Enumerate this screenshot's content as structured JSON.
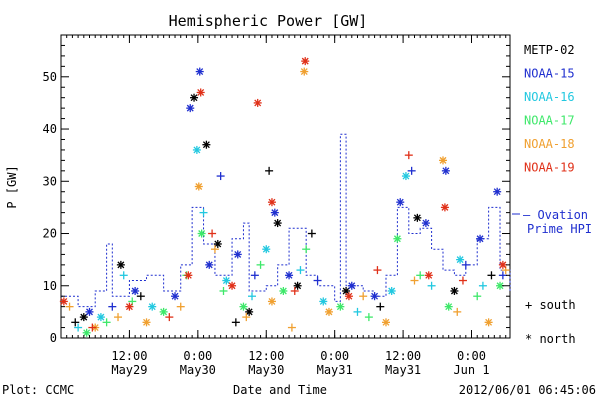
{
  "chart_data": {
    "type": "scatter",
    "title": "Hemispheric Power [GW]",
    "xlabel": "Date and Time",
    "ylabel": "P [GW]",
    "ylim": [
      0,
      58
    ],
    "xlim": [
      "2012-05-29T00:00",
      "2012-06-01T06:45"
    ],
    "y_ticks": [
      0,
      10,
      20,
      30,
      40,
      50
    ],
    "x_ticks": [
      {
        "t": "2012-05-29T12:00",
        "time": "12:00",
        "date": "May29"
      },
      {
        "t": "2012-05-30T00:00",
        "time": "0:00",
        "date": "May30"
      },
      {
        "t": "2012-05-30T12:00",
        "time": "12:00",
        "date": "May30"
      },
      {
        "t": "2012-05-31T00:00",
        "time": "0:00",
        "date": "May31"
      },
      {
        "t": "2012-05-31T12:00",
        "time": "12:00",
        "date": "May31"
      },
      {
        "t": "2012-06-01T00:00",
        "time": "0:00",
        "date": "Jun 1"
      }
    ],
    "grid": false,
    "legend_position": "right",
    "legend": {
      "satellites": [
        {
          "name": "METP-02",
          "color": "#000000"
        },
        {
          "name": "NOAA-15",
          "color": "#1f2fcf"
        },
        {
          "name": "NOAA-16",
          "color": "#22c8e0"
        },
        {
          "name": "NOAA-17",
          "color": "#3ee86a"
        },
        {
          "name": "NOAA-18",
          "color": "#f0a030"
        },
        {
          "name": "NOAA-19",
          "color": "#e03018"
        }
      ],
      "ovation_line1": "— Ovation",
      "ovation_line2": "Prime HPI",
      "south_label": "+ south",
      "north_label": "* north"
    },
    "ovation_prime_hpi": [
      {
        "t": "2012-05-29T00:00",
        "v": 8
      },
      {
        "t": "2012-05-29T03:00",
        "v": 6
      },
      {
        "t": "2012-05-29T06:00",
        "v": 9
      },
      {
        "t": "2012-05-29T08:00",
        "v": 18
      },
      {
        "t": "2012-05-29T09:00",
        "v": 8
      },
      {
        "t": "2012-05-29T12:00",
        "v": 11
      },
      {
        "t": "2012-05-29T15:00",
        "v": 12
      },
      {
        "t": "2012-05-29T18:00",
        "v": 9
      },
      {
        "t": "2012-05-29T21:00",
        "v": 14
      },
      {
        "t": "2012-05-29T23:00",
        "v": 25
      },
      {
        "t": "2012-05-30T01:00",
        "v": 18
      },
      {
        "t": "2012-05-30T03:00",
        "v": 12
      },
      {
        "t": "2012-05-30T06:00",
        "v": 19
      },
      {
        "t": "2012-05-30T08:00",
        "v": 22
      },
      {
        "t": "2012-05-30T09:00",
        "v": 9
      },
      {
        "t": "2012-05-30T12:00",
        "v": 10
      },
      {
        "t": "2012-05-30T14:00",
        "v": 14
      },
      {
        "t": "2012-05-30T16:00",
        "v": 21
      },
      {
        "t": "2012-05-30T19:00",
        "v": 12
      },
      {
        "t": "2012-05-30T21:00",
        "v": 10
      },
      {
        "t": "2012-05-31T00:00",
        "v": 7
      },
      {
        "t": "2012-05-31T01:00",
        "v": 39
      },
      {
        "t": "2012-05-31T02:00",
        "v": 10
      },
      {
        "t": "2012-05-31T05:00",
        "v": 9
      },
      {
        "t": "2012-05-31T07:00",
        "v": 8
      },
      {
        "t": "2012-05-31T09:00",
        "v": 12
      },
      {
        "t": "2012-05-31T11:00",
        "v": 25
      },
      {
        "t": "2012-05-31T13:00",
        "v": 20
      },
      {
        "t": "2012-05-31T15:00",
        "v": 21
      },
      {
        "t": "2012-05-31T17:00",
        "v": 17
      },
      {
        "t": "2012-05-31T19:00",
        "v": 13
      },
      {
        "t": "2012-05-31T21:00",
        "v": 12
      },
      {
        "t": "2012-05-31T23:00",
        "v": 14
      },
      {
        "t": "2012-06-01T01:00",
        "v": 19
      },
      {
        "t": "2012-06-01T03:00",
        "v": 25
      },
      {
        "t": "2012-06-01T05:00",
        "v": 13
      },
      {
        "t": "2012-06-01T06:45",
        "v": 9
      }
    ],
    "series": [
      {
        "name": "METP-02",
        "points": [
          {
            "t": "2012-05-29T02:30",
            "v": 3,
            "h": "s"
          },
          {
            "t": "2012-05-29T04:00",
            "v": 4,
            "h": "n"
          },
          {
            "t": "2012-05-29T10:30",
            "v": 14,
            "h": "n"
          },
          {
            "t": "2012-05-29T14:00",
            "v": 8,
            "h": "s"
          },
          {
            "t": "2012-05-29T23:20",
            "v": 46,
            "h": "n"
          },
          {
            "t": "2012-05-30T01:30",
            "v": 37,
            "h": "n"
          },
          {
            "t": "2012-05-30T03:30",
            "v": 18,
            "h": "n"
          },
          {
            "t": "2012-05-30T06:40",
            "v": 3,
            "h": "s"
          },
          {
            "t": "2012-05-30T09:00",
            "v": 5,
            "h": "n"
          },
          {
            "t": "2012-05-30T12:30",
            "v": 32,
            "h": "s"
          },
          {
            "t": "2012-05-30T14:00",
            "v": 22,
            "h": "n"
          },
          {
            "t": "2012-05-30T17:30",
            "v": 10,
            "h": "n"
          },
          {
            "t": "2012-05-30T20:00",
            "v": 20,
            "h": "s"
          },
          {
            "t": "2012-05-31T02:00",
            "v": 9,
            "h": "n"
          },
          {
            "t": "2012-05-31T08:00",
            "v": 6,
            "h": "s"
          },
          {
            "t": "2012-05-31T14:30",
            "v": 23,
            "h": "n"
          },
          {
            "t": "2012-05-31T21:00",
            "v": 9,
            "h": "n"
          },
          {
            "t": "2012-06-01T03:30",
            "v": 12,
            "h": "s"
          }
        ]
      },
      {
        "name": "NOAA-15",
        "points": [
          {
            "t": "2012-05-29T05:00",
            "v": 5,
            "h": "n"
          },
          {
            "t": "2012-05-29T09:00",
            "v": 6,
            "h": "s"
          },
          {
            "t": "2012-05-29T13:00",
            "v": 9,
            "h": "n"
          },
          {
            "t": "2012-05-29T20:00",
            "v": 8,
            "h": "n"
          },
          {
            "t": "2012-05-29T22:40",
            "v": 44,
            "h": "n"
          },
          {
            "t": "2012-05-30T00:20",
            "v": 51,
            "h": "n"
          },
          {
            "t": "2012-05-30T02:00",
            "v": 14,
            "h": "n"
          },
          {
            "t": "2012-05-30T04:00",
            "v": 31,
            "h": "s"
          },
          {
            "t": "2012-05-30T07:00",
            "v": 16,
            "h": "n"
          },
          {
            "t": "2012-05-30T10:00",
            "v": 12,
            "h": "s"
          },
          {
            "t": "2012-05-30T13:30",
            "v": 24,
            "h": "n"
          },
          {
            "t": "2012-05-30T16:00",
            "v": 12,
            "h": "n"
          },
          {
            "t": "2012-05-30T21:00",
            "v": 11,
            "h": "s"
          },
          {
            "t": "2012-05-31T03:00",
            "v": 10,
            "h": "n"
          },
          {
            "t": "2012-05-31T07:00",
            "v": 8,
            "h": "n"
          },
          {
            "t": "2012-05-31T11:30",
            "v": 26,
            "h": "n"
          },
          {
            "t": "2012-05-31T13:30",
            "v": 32,
            "h": "s"
          },
          {
            "t": "2012-05-31T16:00",
            "v": 22,
            "h": "n"
          },
          {
            "t": "2012-05-31T19:30",
            "v": 32,
            "h": "n"
          },
          {
            "t": "2012-05-31T23:00",
            "v": 14,
            "h": "s"
          },
          {
            "t": "2012-06-01T01:30",
            "v": 19,
            "h": "n"
          },
          {
            "t": "2012-06-01T04:30",
            "v": 28,
            "h": "n"
          },
          {
            "t": "2012-06-01T05:30",
            "v": 12,
            "h": "s"
          }
        ]
      },
      {
        "name": "NOAA-16",
        "points": [
          {
            "t": "2012-05-29T03:00",
            "v": 2,
            "h": "s"
          },
          {
            "t": "2012-05-29T07:00",
            "v": 4,
            "h": "n"
          },
          {
            "t": "2012-05-29T11:00",
            "v": 12,
            "h": "s"
          },
          {
            "t": "2012-05-29T16:00",
            "v": 6,
            "h": "n"
          },
          {
            "t": "2012-05-29T23:50",
            "v": 36,
            "h": "n"
          },
          {
            "t": "2012-05-30T01:00",
            "v": 24,
            "h": "s"
          },
          {
            "t": "2012-05-30T05:00",
            "v": 11,
            "h": "n"
          },
          {
            "t": "2012-05-30T09:30",
            "v": 8,
            "h": "s"
          },
          {
            "t": "2012-05-30T12:00",
            "v": 17,
            "h": "n"
          },
          {
            "t": "2012-05-30T18:00",
            "v": 13,
            "h": "s"
          },
          {
            "t": "2012-05-30T22:00",
            "v": 7,
            "h": "n"
          },
          {
            "t": "2012-05-31T04:00",
            "v": 5,
            "h": "s"
          },
          {
            "t": "2012-05-31T10:00",
            "v": 9,
            "h": "n"
          },
          {
            "t": "2012-05-31T12:30",
            "v": 31,
            "h": "n"
          },
          {
            "t": "2012-05-31T17:00",
            "v": 10,
            "h": "s"
          },
          {
            "t": "2012-05-31T22:00",
            "v": 15,
            "h": "n"
          },
          {
            "t": "2012-06-01T02:00",
            "v": 10,
            "h": "s"
          }
        ]
      },
      {
        "name": "NOAA-17",
        "points": [
          {
            "t": "2012-05-29T04:30",
            "v": 1,
            "h": "n"
          },
          {
            "t": "2012-05-29T08:00",
            "v": 3,
            "h": "s"
          },
          {
            "t": "2012-05-29T12:30",
            "v": 7,
            "h": "s"
          },
          {
            "t": "2012-05-29T18:00",
            "v": 5,
            "h": "n"
          },
          {
            "t": "2012-05-29T22:00",
            "v": 12,
            "h": "s"
          },
          {
            "t": "2012-05-30T00:40",
            "v": 20,
            "h": "n"
          },
          {
            "t": "2012-05-30T04:30",
            "v": 9,
            "h": "s"
          },
          {
            "t": "2012-05-30T08:00",
            "v": 6,
            "h": "n"
          },
          {
            "t": "2012-05-30T11:00",
            "v": 14,
            "h": "s"
          },
          {
            "t": "2012-05-30T15:00",
            "v": 9,
            "h": "n"
          },
          {
            "t": "2012-05-30T19:00",
            "v": 17,
            "h": "s"
          },
          {
            "t": "2012-05-31T01:00",
            "v": 6,
            "h": "n"
          },
          {
            "t": "2012-05-31T06:00",
            "v": 4,
            "h": "s"
          },
          {
            "t": "2012-05-31T11:00",
            "v": 19,
            "h": "n"
          },
          {
            "t": "2012-05-31T15:00",
            "v": 12,
            "h": "s"
          },
          {
            "t": "2012-05-31T20:00",
            "v": 6,
            "h": "n"
          },
          {
            "t": "2012-06-01T01:00",
            "v": 8,
            "h": "s"
          },
          {
            "t": "2012-06-01T05:00",
            "v": 10,
            "h": "n"
          }
        ]
      },
      {
        "name": "NOAA-18",
        "points": [
          {
            "t": "2012-05-29T01:30",
            "v": 6,
            "h": "s"
          },
          {
            "t": "2012-05-29T06:00",
            "v": 2,
            "h": "n"
          },
          {
            "t": "2012-05-29T10:00",
            "v": 4,
            "h": "s"
          },
          {
            "t": "2012-05-29T15:00",
            "v": 3,
            "h": "n"
          },
          {
            "t": "2012-05-29T21:00",
            "v": 6,
            "h": "s"
          },
          {
            "t": "2012-05-30T00:10",
            "v": 29,
            "h": "n"
          },
          {
            "t": "2012-05-30T03:00",
            "v": 17,
            "h": "s"
          },
          {
            "t": "2012-05-30T08:30",
            "v": 4,
            "h": "s"
          },
          {
            "t": "2012-05-30T13:00",
            "v": 7,
            "h": "n"
          },
          {
            "t": "2012-05-30T16:30",
            "v": 2,
            "h": "s"
          },
          {
            "t": "2012-05-30T18:40",
            "v": 51,
            "h": "n"
          },
          {
            "t": "2012-05-30T23:00",
            "v": 5,
            "h": "n"
          },
          {
            "t": "2012-05-31T05:00",
            "v": 8,
            "h": "s"
          },
          {
            "t": "2012-05-31T09:00",
            "v": 3,
            "h": "n"
          },
          {
            "t": "2012-05-31T14:00",
            "v": 11,
            "h": "s"
          },
          {
            "t": "2012-05-31T19:00",
            "v": 34,
            "h": "n"
          },
          {
            "t": "2012-05-31T21:30",
            "v": 5,
            "h": "s"
          },
          {
            "t": "2012-06-01T03:00",
            "v": 3,
            "h": "n"
          },
          {
            "t": "2012-06-01T06:00",
            "v": 13,
            "h": "s"
          }
        ]
      },
      {
        "name": "NOAA-19",
        "points": [
          {
            "t": "2012-05-29T00:30",
            "v": 7,
            "h": "n"
          },
          {
            "t": "2012-05-29T05:30",
            "v": 2,
            "h": "s"
          },
          {
            "t": "2012-05-29T12:00",
            "v": 6,
            "h": "n"
          },
          {
            "t": "2012-05-29T19:00",
            "v": 4,
            "h": "s"
          },
          {
            "t": "2012-05-29T22:20",
            "v": 12,
            "h": "n"
          },
          {
            "t": "2012-05-30T00:30",
            "v": 47,
            "h": "n"
          },
          {
            "t": "2012-05-30T02:30",
            "v": 20,
            "h": "s"
          },
          {
            "t": "2012-05-30T06:00",
            "v": 10,
            "h": "n"
          },
          {
            "t": "2012-05-30T10:30",
            "v": 45,
            "h": "n"
          },
          {
            "t": "2012-05-30T13:00",
            "v": 26,
            "h": "n"
          },
          {
            "t": "2012-05-30T17:00",
            "v": 9,
            "h": "s"
          },
          {
            "t": "2012-05-30T18:50",
            "v": 53,
            "h": "n"
          },
          {
            "t": "2012-05-31T02:30",
            "v": 8,
            "h": "n"
          },
          {
            "t": "2012-05-31T07:30",
            "v": 13,
            "h": "s"
          },
          {
            "t": "2012-05-31T13:00",
            "v": 35,
            "h": "s"
          },
          {
            "t": "2012-05-31T16:30",
            "v": 12,
            "h": "n"
          },
          {
            "t": "2012-05-31T19:20",
            "v": 25,
            "h": "n"
          },
          {
            "t": "2012-05-31T22:30",
            "v": 11,
            "h": "s"
          },
          {
            "t": "2012-06-01T05:30",
            "v": 14,
            "h": "n"
          }
        ]
      }
    ]
  },
  "footer": {
    "plot_label": "Plot: CCMC",
    "timestamp": "2012/06/01 06:45:06"
  }
}
